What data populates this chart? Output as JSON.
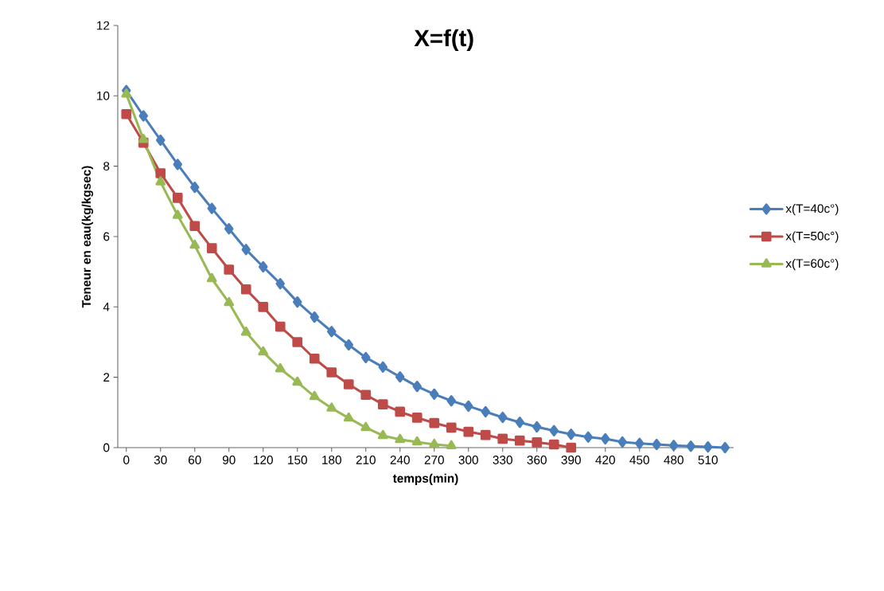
{
  "chart_data": {
    "type": "line",
    "title": "X=f(t)",
    "xlabel": "temps(min)",
    "ylabel": "Teneur en eau(kg/kgsec)",
    "xlim": [
      -7.5,
      532.5
    ],
    "xticks": [
      0,
      30,
      60,
      90,
      120,
      150,
      180,
      210,
      240,
      270,
      300,
      330,
      360,
      390,
      420,
      450,
      480,
      510
    ],
    "ylim": [
      0,
      12
    ],
    "yticks": [
      0,
      2,
      4,
      6,
      8,
      10,
      12
    ],
    "legend": "right",
    "line_style": "solid",
    "series": [
      {
        "name": "x(T=40c°)",
        "color": "#4a7ebb",
        "marker": "diamond",
        "x": [
          0,
          15,
          30,
          45,
          60,
          75,
          90,
          105,
          120,
          135,
          150,
          165,
          180,
          195,
          210,
          225,
          240,
          255,
          270,
          285,
          300,
          315,
          330,
          345,
          360,
          375,
          390,
          405,
          420,
          435,
          450,
          465,
          480,
          495,
          510,
          525
        ],
        "values": [
          10.15,
          9.43,
          8.74,
          8.05,
          7.4,
          6.8,
          6.22,
          5.63,
          5.14,
          4.66,
          4.14,
          3.71,
          3.3,
          2.92,
          2.56,
          2.29,
          2.01,
          1.74,
          1.52,
          1.33,
          1.18,
          1.02,
          0.86,
          0.72,
          0.59,
          0.48,
          0.38,
          0.3,
          0.25,
          0.16,
          0.12,
          0.09,
          0.06,
          0.04,
          0.02,
          0
        ]
      },
      {
        "name": "x(T=50c°)",
        "color": "#be4b48",
        "marker": "square",
        "x": [
          0,
          15,
          30,
          45,
          60,
          75,
          90,
          105,
          120,
          135,
          150,
          165,
          180,
          195,
          210,
          225,
          240,
          255,
          270,
          285,
          300,
          315,
          330,
          345,
          360,
          375,
          390
        ],
        "values": [
          9.48,
          8.67,
          7.8,
          7.1,
          6.3,
          5.67,
          5.06,
          4.5,
          4.0,
          3.44,
          3.0,
          2.53,
          2.14,
          1.8,
          1.5,
          1.23,
          1.02,
          0.85,
          0.7,
          0.57,
          0.45,
          0.36,
          0.25,
          0.2,
          0.15,
          0.09,
          0
        ]
      },
      {
        "name": "x(T=60c°)",
        "color": "#98b954",
        "marker": "triangle",
        "x": [
          0,
          15,
          30,
          45,
          60,
          75,
          90,
          105,
          120,
          135,
          150,
          165,
          180,
          195,
          210,
          225,
          240,
          255,
          270,
          285
        ],
        "values": [
          10.05,
          8.76,
          7.55,
          6.6,
          5.75,
          4.8,
          4.12,
          3.28,
          2.72,
          2.24,
          1.86,
          1.45,
          1.12,
          0.84,
          0.57,
          0.34,
          0.23,
          0.16,
          0.09,
          0.05
        ]
      }
    ]
  }
}
